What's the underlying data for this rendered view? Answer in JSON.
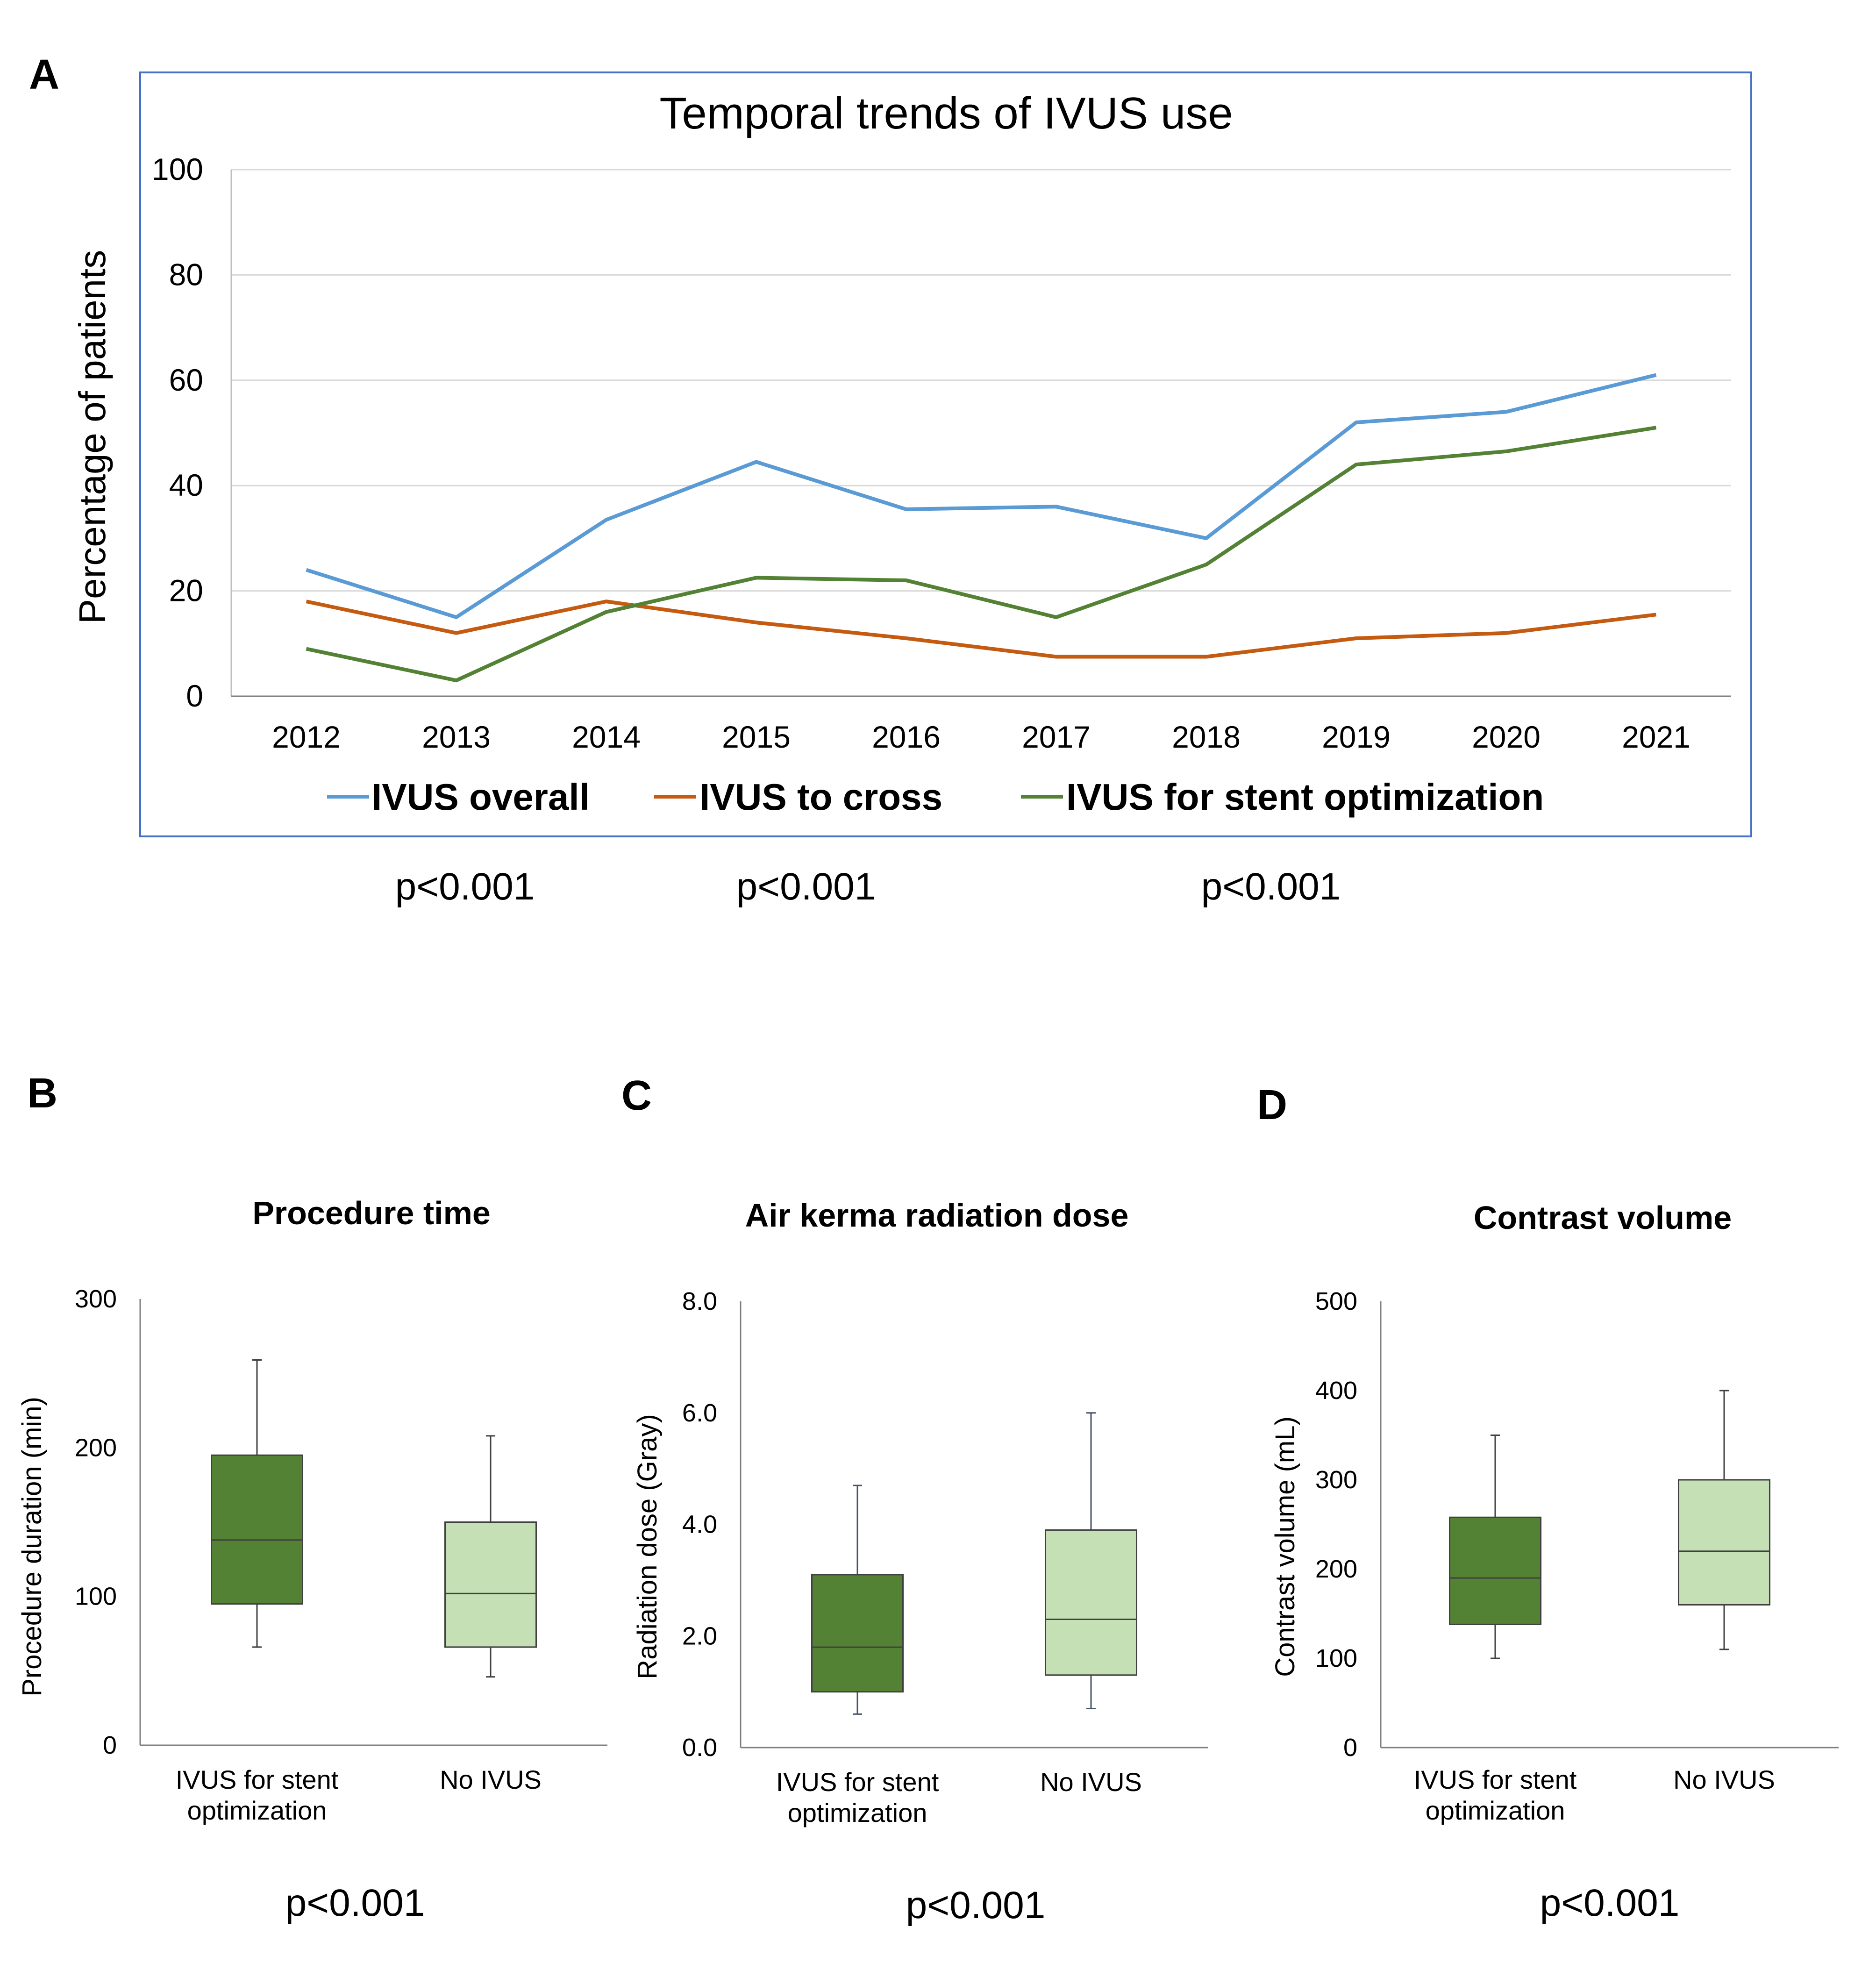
{
  "panel_labels": {
    "a": "A",
    "b": "B",
    "c": "C",
    "d": "D"
  },
  "p_values": {
    "a": [
      "p<0.001",
      "p<0.001",
      "p<0.001"
    ],
    "b": "p<0.001",
    "c": "p<0.001",
    "d": "p<0.001"
  },
  "colors": {
    "overall": "#5B9BD5",
    "cross": "#C55A11",
    "stent": "#548235",
    "box_dark": "#548235",
    "box_light": "#C5E0B4",
    "frame": "#4472C4"
  },
  "chart_data": [
    {
      "id": "A",
      "type": "line",
      "title": "Temporal trends of IVUS use",
      "xlabel": "",
      "ylabel": "Percentage of patients",
      "ylim": [
        0,
        100
      ],
      "yticks": [
        "0",
        "20",
        "40",
        "60",
        "80",
        "100"
      ],
      "categories": [
        "2012",
        "2013",
        "2014",
        "2015",
        "2016",
        "2017",
        "2018",
        "2019",
        "2020",
        "2021"
      ],
      "legend_position": "bottom",
      "series": [
        {
          "name": "IVUS overall",
          "color": "#5B9BD5",
          "values": [
            24,
            15,
            33.5,
            44.5,
            35.5,
            36,
            30,
            52,
            54,
            61
          ]
        },
        {
          "name": "IVUS to cross",
          "color": "#C55A11",
          "values": [
            18,
            12,
            18,
            14,
            11,
            7.5,
            7.5,
            11,
            12,
            15.5
          ]
        },
        {
          "name": "IVUS for stent optimization",
          "color": "#548235",
          "values": [
            9,
            3,
            16,
            22.5,
            22,
            15,
            25,
            44,
            46.5,
            51
          ]
        }
      ]
    },
    {
      "id": "B",
      "type": "box",
      "title": "Procedure time",
      "ylabel": "Procedure duration (min)",
      "ylim": [
        0,
        300
      ],
      "yticks": [
        "0",
        "100",
        "200",
        "300"
      ],
      "categories": [
        "IVUS for stent optimization",
        "No IVUS"
      ],
      "category_lines": [
        [
          "IVUS for stent",
          "optimization"
        ],
        [
          "No IVUS"
        ]
      ],
      "boxes": [
        {
          "min": 66,
          "q1": 95,
          "median": 138,
          "q3": 195,
          "max": 259,
          "fill": "#548235"
        },
        {
          "min": 46,
          "q1": 66,
          "median": 102,
          "q3": 150,
          "max": 208,
          "fill": "#C5E0B4"
        }
      ]
    },
    {
      "id": "C",
      "type": "box",
      "title": "Air kerma radiation dose",
      "ylabel": "Radiation dose (Gray)",
      "ylim": [
        0,
        8
      ],
      "yticks": [
        "0.0",
        "2.0",
        "4.0",
        "6.0",
        "8.0"
      ],
      "categories": [
        "IVUS for stent optimization",
        "No IVUS"
      ],
      "category_lines": [
        [
          "IVUS for stent",
          "optimization"
        ],
        [
          "No IVUS"
        ]
      ],
      "boxes": [
        {
          "min": 0.6,
          "q1": 1.0,
          "median": 1.8,
          "q3": 3.1,
          "max": 4.7,
          "fill": "#548235"
        },
        {
          "min": 0.7,
          "q1": 1.3,
          "median": 2.3,
          "q3": 3.9,
          "max": 6.0,
          "fill": "#C5E0B4"
        }
      ]
    },
    {
      "id": "D",
      "type": "box",
      "title": "Contrast volume",
      "ylabel": "Contrast volume (mL)",
      "ylim": [
        0,
        500
      ],
      "yticks": [
        "0",
        "100",
        "200",
        "300",
        "400",
        "500"
      ],
      "categories": [
        "IVUS for stent optimization",
        "No IVUS"
      ],
      "category_lines": [
        [
          "IVUS for stent",
          "optimization"
        ],
        [
          "No IVUS"
        ]
      ],
      "boxes": [
        {
          "min": 100,
          "q1": 138,
          "median": 190,
          "q3": 258,
          "max": 350,
          "fill": "#548235"
        },
        {
          "min": 110,
          "q1": 160,
          "median": 220,
          "q3": 300,
          "max": 400,
          "fill": "#C5E0B4"
        }
      ]
    }
  ]
}
